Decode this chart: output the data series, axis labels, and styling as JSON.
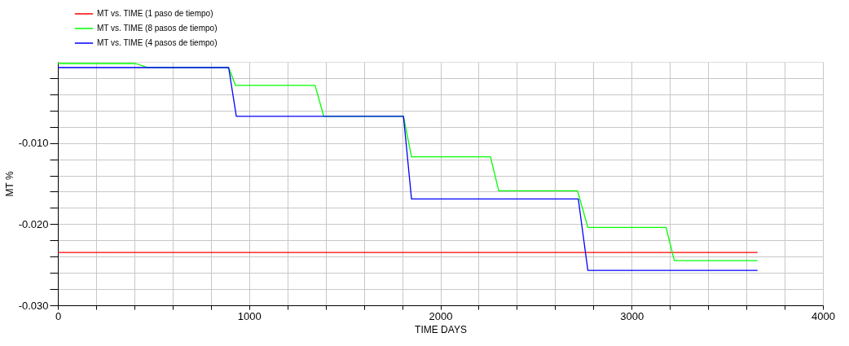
{
  "chart_data": {
    "type": "line",
    "xlabel": "TIME   DAYS",
    "ylabel": "MT   %",
    "xlim": [
      0,
      4000
    ],
    "ylim": [
      -0.03,
      0
    ],
    "xticks": [
      0,
      {
        "value": 200,
        "label": null
      },
      {
        "value": 400,
        "label": null
      },
      {
        "value": 600,
        "label": null
      },
      {
        "value": 800,
        "label": null
      },
      1000,
      {
        "value": 1200,
        "label": null
      },
      {
        "value": 1400,
        "label": null
      },
      {
        "value": 1600,
        "label": null
      },
      {
        "value": 1800,
        "label": null
      },
      2000,
      {
        "value": 2200,
        "label": null
      },
      {
        "value": 2400,
        "label": null
      },
      {
        "value": 2600,
        "label": null
      },
      {
        "value": 2800,
        "label": null
      },
      3000,
      {
        "value": 3200,
        "label": null
      },
      {
        "value": 3400,
        "label": null
      },
      {
        "value": 3600,
        "label": null
      },
      {
        "value": 3800,
        "label": null
      },
      4000
    ],
    "yticks": [
      {
        "value": -0.03,
        "label": "-0.030"
      },
      {
        "value": -0.028,
        "label": null
      },
      {
        "value": -0.026,
        "label": null
      },
      {
        "value": -0.024,
        "label": null
      },
      {
        "value": -0.022,
        "label": null
      },
      {
        "value": -0.02,
        "label": "-0.020"
      },
      {
        "value": -0.018,
        "label": null
      },
      {
        "value": -0.016,
        "label": null
      },
      {
        "value": -0.014,
        "label": null
      },
      {
        "value": -0.012,
        "label": null
      },
      {
        "value": -0.01,
        "label": "-0.010"
      },
      {
        "value": -0.008,
        "label": null
      },
      {
        "value": -0.006,
        "label": null
      },
      {
        "value": -0.004,
        "label": null
      },
      {
        "value": -0.002,
        "label": null
      }
    ],
    "grid": true,
    "legend": "top left",
    "marker": "none",
    "line_style": "solid",
    "series": [
      {
        "name": "MT  vs.  TIME (1 paso de tiempo)",
        "color": "#ff0000",
        "x": [
          0,
          3658
        ],
        "values": [
          -0.0235,
          -0.0235
        ]
      },
      {
        "name": "MT  vs.  TIME (8 pasos de tiempo)",
        "color": "#00ff00",
        "x": [
          0,
          406,
          469,
          893,
          929,
          1345,
          1390,
          1807,
          1849,
          2262,
          2305,
          2717,
          2771,
          3180,
          3223,
          3658
        ],
        "values": [
          -0.0002,
          -0.0002,
          -0.0007,
          -0.0007,
          -0.0029,
          -0.0029,
          -0.0067,
          -0.0067,
          -0.0117,
          -0.0117,
          -0.0159,
          -0.0159,
          -0.0204,
          -0.0204,
          -0.0245,
          -0.0245
        ]
      },
      {
        "name": "MT  vs.  TIME (4 pasos de tiempo)",
        "color": "#0000ff",
        "x": [
          0,
          893,
          933,
          1807,
          1849,
          2721,
          2771,
          3658
        ],
        "values": [
          -0.0007,
          -0.0007,
          -0.0067,
          -0.0067,
          -0.0169,
          -0.0169,
          -0.0257,
          -0.0257
        ]
      }
    ]
  }
}
